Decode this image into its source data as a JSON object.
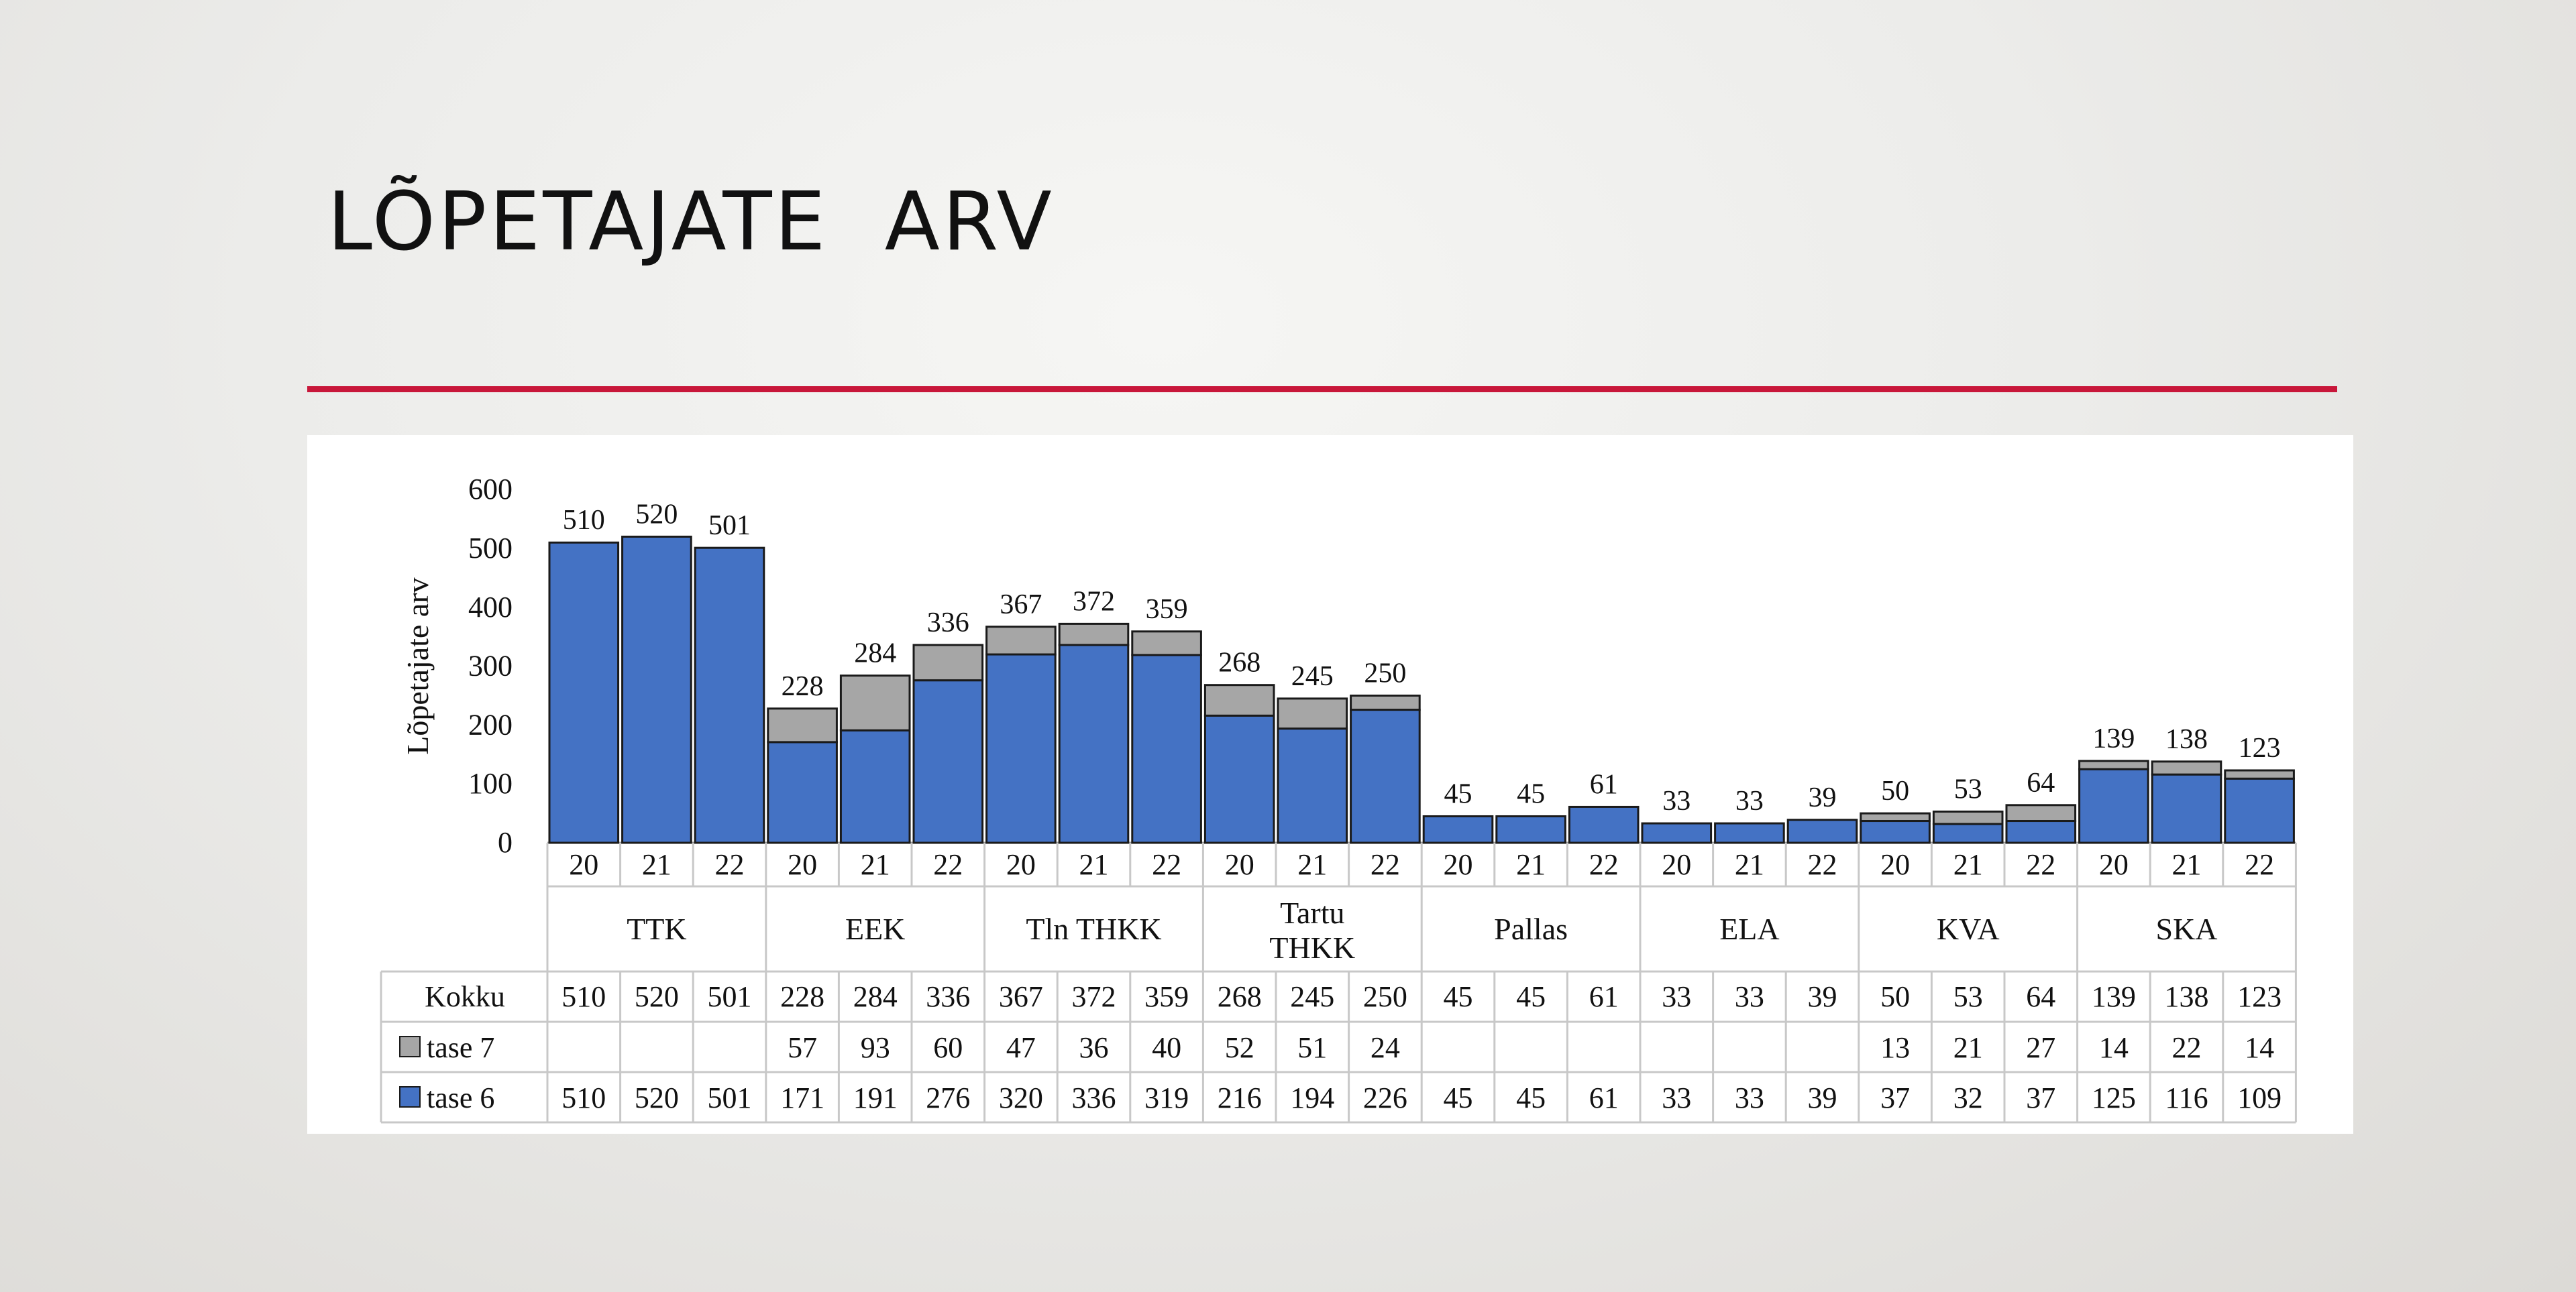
{
  "slide": {
    "title": "LÕPETAJATE  ARV"
  },
  "colors": {
    "accent_rule": "#c8173a",
    "tase6": "#4472c4",
    "tase7": "#a6a6a6"
  },
  "chart_data": {
    "type": "bar",
    "stacked": true,
    "ylabel": "Lõpetajate arv",
    "ylim": [
      0,
      600
    ],
    "yticks": [
      0,
      100,
      200,
      300,
      400,
      500,
      600
    ],
    "groups": [
      {
        "name": "TTK",
        "years": [
          "20",
          "21",
          "22"
        ]
      },
      {
        "name": "EEK",
        "years": [
          "20",
          "21",
          "22"
        ]
      },
      {
        "name": "Tln THKK",
        "years": [
          "20",
          "21",
          "22"
        ]
      },
      {
        "name": "Tartu THKK",
        "years": [
          "20",
          "21",
          "22"
        ]
      },
      {
        "name": "Pallas",
        "years": [
          "20",
          "21",
          "22"
        ]
      },
      {
        "name": "ELA",
        "years": [
          "20",
          "21",
          "22"
        ]
      },
      {
        "name": "KVA",
        "years": [
          "20",
          "21",
          "22"
        ]
      },
      {
        "name": "SKA",
        "years": [
          "20",
          "21",
          "22"
        ]
      }
    ],
    "totals_label": "Kokku",
    "totals": [
      510,
      520,
      501,
      228,
      284,
      336,
      367,
      372,
      359,
      268,
      245,
      250,
      45,
      45,
      61,
      33,
      33,
      39,
      50,
      53,
      64,
      139,
      138,
      123
    ],
    "series": [
      {
        "name": "tase 7",
        "color": "#a6a6a6",
        "values": [
          null,
          null,
          null,
          57,
          93,
          60,
          47,
          36,
          40,
          52,
          51,
          24,
          null,
          null,
          null,
          null,
          null,
          null,
          13,
          21,
          27,
          14,
          22,
          14
        ]
      },
      {
        "name": "tase 6",
        "color": "#4472c4",
        "values": [
          510,
          520,
          501,
          171,
          191,
          276,
          320,
          336,
          319,
          216,
          194,
          226,
          45,
          45,
          61,
          33,
          33,
          39,
          37,
          32,
          37,
          125,
          116,
          109
        ]
      }
    ]
  }
}
